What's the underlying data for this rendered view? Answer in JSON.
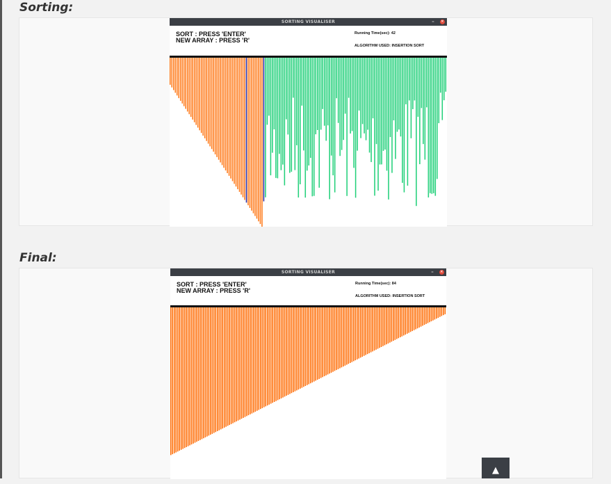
{
  "sections": [
    {
      "heading": "Sorting:",
      "window": {
        "title": "SORTING VISUALISER",
        "minimize_glyph": "–",
        "close_glyph": "×",
        "instructions": [
          "SORT : PRESS 'ENTER'",
          "NEW ARRAY : PRESS 'R'"
        ],
        "running_time_label": "Running Time(sec):",
        "running_time_value": "42",
        "algorithm_label": "ALGORITHM USED:",
        "algorithm_value": "INSERTION SORT"
      },
      "chart_data": {
        "type": "bar",
        "state": "in-progress",
        "bar_count": 160,
        "sorted_count": 54,
        "highlighted_indices": [
          44,
          54
        ],
        "colors": {
          "sorted": "#ff7a1a",
          "unsorted": "#22d07a",
          "highlight": "#2a2aa0"
        }
      }
    },
    {
      "heading": "Final:",
      "window": {
        "title": "SORTING VISUALISER",
        "minimize_glyph": "–",
        "close_glyph": "×",
        "instructions": [
          "SORT : PRESS 'ENTER'",
          "NEW ARRAY : PRESS 'R'"
        ],
        "running_time_label": "Running Time(sec):",
        "running_time_value": "84",
        "algorithm_label": "ALGORITHM USED:",
        "algorithm_value": "INSERTION SORT"
      },
      "chart_data": {
        "type": "bar",
        "state": "sorted",
        "bar_count": 160,
        "colors": {
          "sorted": "#ff6a00"
        }
      }
    }
  ],
  "scroll_top_glyph": "▲"
}
